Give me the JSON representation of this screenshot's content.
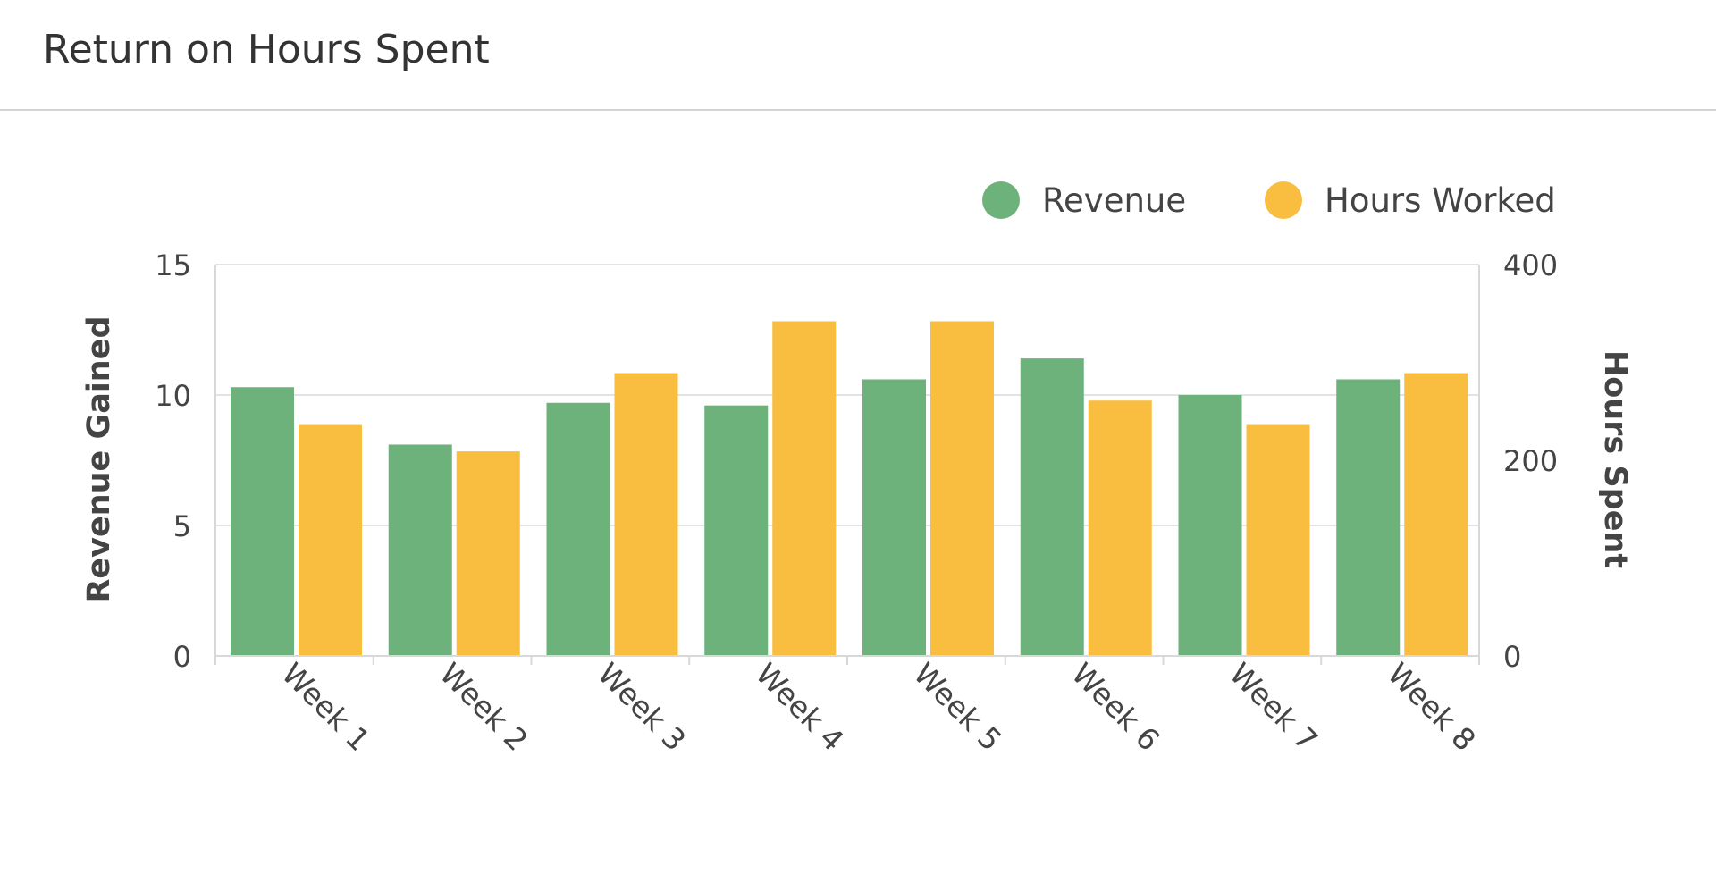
{
  "header": {
    "title": "Return on Hours Spent"
  },
  "chart_data": {
    "type": "bar",
    "categories": [
      "Week 1",
      "Week 2",
      "Week 3",
      "Week 4",
      "Week 5",
      "Week 6",
      "Week 7",
      "Week 8"
    ],
    "series": [
      {
        "name": "Revenue",
        "axis": "left",
        "color": "#6db17b",
        "values": [
          10.3,
          8.1,
          9.7,
          9.6,
          10.6,
          11.4,
          10.0,
          10.6
        ]
      },
      {
        "name": "Hours Worked",
        "axis": "right",
        "color": "#f9bd3f",
        "values": [
          236,
          209,
          289,
          342,
          342,
          261,
          236,
          289
        ]
      }
    ],
    "ylabel": "Revenue Gained",
    "y2label": "Hours Spent",
    "ylim": [
      0,
      15
    ],
    "y2lim": [
      0,
      400
    ],
    "yticks": [
      "0",
      "5",
      "10",
      "15"
    ],
    "y2ticks": [
      "0",
      "200",
      "400"
    ],
    "grid": true,
    "legend": "top-right"
  }
}
